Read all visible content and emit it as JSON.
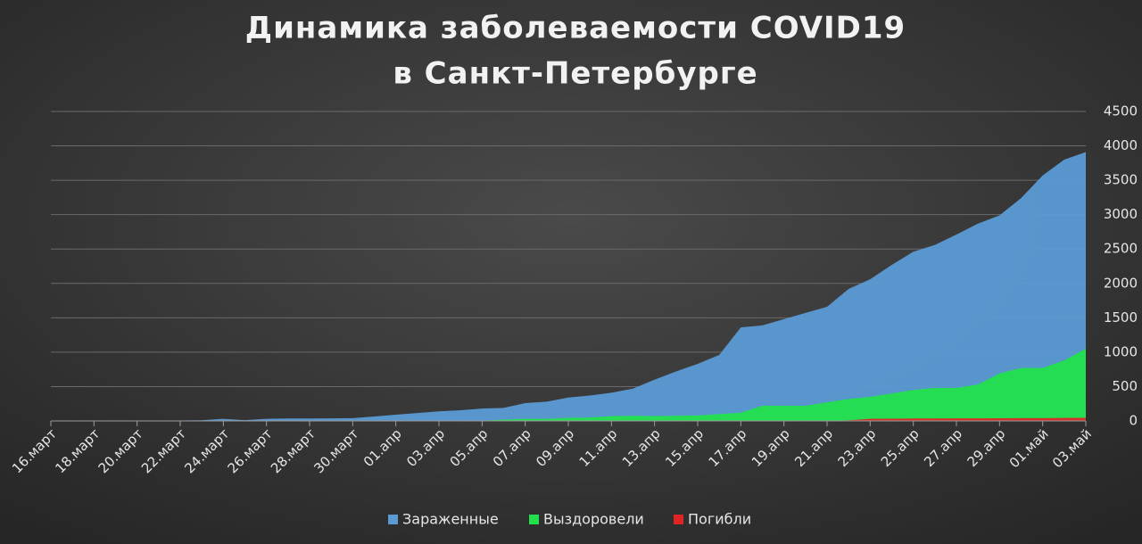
{
  "chart_data": {
    "type": "area",
    "title": [
      "Динамика заболеваемости COVID19",
      "в Санкт-Петербурге"
    ],
    "categories": [
      "16.март",
      null,
      "18.март",
      null,
      "20.март",
      null,
      "22.март",
      null,
      "24.март",
      null,
      "26.март",
      null,
      "28.март",
      null,
      "30.март",
      null,
      "01.апр",
      null,
      "03.апр",
      null,
      "05.апр",
      null,
      "07.апр",
      null,
      "09.апр",
      null,
      "11.апр",
      null,
      "13.апр",
      null,
      "15.апр",
      null,
      "17.апр",
      null,
      "19.апр",
      null,
      "21.апр",
      null,
      "23.апр",
      null,
      "25.апр",
      null,
      "27.апр",
      null,
      "29.апр",
      null,
      "01.май",
      null,
      "03.май"
    ],
    "series": [
      {
        "name": "Зараженные",
        "color": "#5b9bd5",
        "values": [
          1,
          2,
          3,
          3,
          4,
          5,
          6,
          10,
          30,
          12,
          30,
          35,
          35,
          37,
          40,
          65,
          90,
          115,
          140,
          155,
          180,
          190,
          260,
          280,
          340,
          370,
          410,
          470,
          600,
          720,
          830,
          960,
          1360,
          1390,
          1480,
          1570,
          1660,
          1920,
          2060,
          2270,
          2460,
          2560,
          2710,
          2870,
          2990,
          3240,
          3570,
          3800,
          3910
        ]
      },
      {
        "name": "Выздоровели",
        "color": "#22e04c",
        "values": [
          0,
          0,
          0,
          0,
          0,
          0,
          0,
          0,
          0,
          0,
          0,
          0,
          0,
          0,
          0,
          0,
          0,
          0,
          0,
          0,
          5,
          20,
          30,
          30,
          45,
          50,
          70,
          75,
          70,
          75,
          80,
          100,
          120,
          220,
          220,
          220,
          270,
          320,
          350,
          400,
          450,
          480,
          480,
          530,
          690,
          770,
          770,
          880,
          1050
        ]
      },
      {
        "name": "Погибли",
        "color": "#e02424",
        "values": [
          0,
          0,
          0,
          0,
          0,
          0,
          0,
          0,
          0,
          0,
          0,
          0,
          0,
          0,
          0,
          0,
          0,
          0,
          0,
          0,
          0,
          0,
          0,
          0,
          0,
          0,
          0,
          0,
          0,
          0,
          0,
          0,
          0,
          0,
          0,
          0,
          2,
          10,
          30,
          33,
          35,
          36,
          37,
          38,
          39,
          40,
          41,
          43,
          45
        ]
      }
    ],
    "ylim": [
      0,
      4500
    ],
    "yticks": [
      0,
      500,
      1000,
      1500,
      2000,
      2500,
      3000,
      3500,
      4000,
      4500
    ],
    "grid": true,
    "legend": "bottom"
  }
}
